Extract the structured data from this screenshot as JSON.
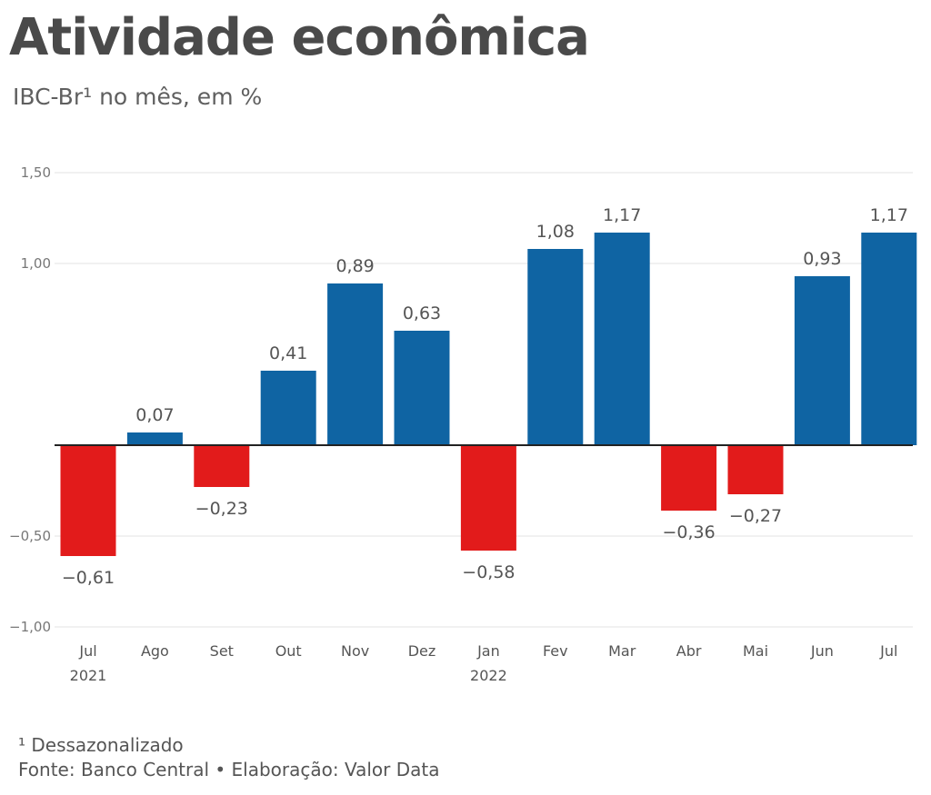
{
  "title": "Atividade econômica",
  "subtitle": "IBC-Br¹ no mês, em %",
  "footnote": "¹ Dessazonalizado",
  "source": "Fonte: Banco Central • Elaboração: Valor Data",
  "colors": {
    "positive": "#0f64a3",
    "negative": "#e21b1b",
    "grid": "#e3e3e3",
    "axis": "#222222"
  },
  "chart_data": {
    "type": "bar",
    "title": "Atividade econômica",
    "subtitle": "IBC-Br¹ no mês, em %",
    "categories": [
      "Jul",
      "Ago",
      "Set",
      "Out",
      "Nov",
      "Dez",
      "Jan",
      "Fev",
      "Mar",
      "Abr",
      "Mai",
      "Jun",
      "Jul"
    ],
    "year_labels": [
      {
        "index": 0,
        "label": "2021"
      },
      {
        "index": 6,
        "label": "2022"
      }
    ],
    "values": [
      -0.61,
      0.07,
      -0.23,
      0.41,
      0.89,
      0.63,
      -0.58,
      1.08,
      1.17,
      -0.36,
      -0.27,
      0.93,
      1.17
    ],
    "value_labels": [
      "−0,61",
      "0,07",
      "−0,23",
      "0,41",
      "0,89",
      "0,63",
      "−0,58",
      "1,08",
      "1,17",
      "−0,36",
      "−0,27",
      "0,93",
      "1,17"
    ],
    "yticks": [
      1.5,
      1.0,
      -0.5,
      -1.0
    ],
    "ytick_labels": [
      "1,50",
      "1,00",
      "−0,50",
      "−1,00"
    ],
    "ylim": [
      -1.0,
      1.5
    ],
    "grid": true
  }
}
